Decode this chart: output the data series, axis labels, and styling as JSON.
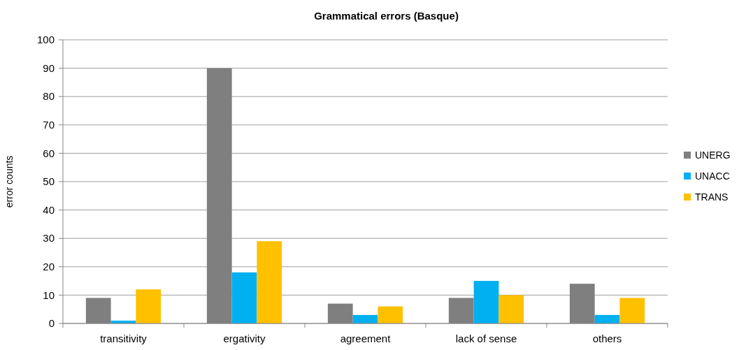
{
  "chart_data": {
    "type": "bar",
    "title": "Grammatical errors (Basque)",
    "ylabel": "error counts",
    "categories": [
      "transitivity",
      "ergativity",
      "agreement",
      "lack of sense",
      "others"
    ],
    "series": [
      {
        "name": "UNERG",
        "color": "#7f7f7f",
        "values": [
          9,
          90,
          7,
          9,
          14
        ]
      },
      {
        "name": "UNACC",
        "color": "#00b0f0",
        "values": [
          1,
          18,
          3,
          15,
          3
        ]
      },
      {
        "name": "TRANS",
        "color": "#ffc000",
        "values": [
          12,
          29,
          6,
          10,
          9
        ]
      }
    ],
    "ylim": [
      0,
      100
    ],
    "yticks": [
      0,
      10,
      20,
      30,
      40,
      50,
      60,
      70,
      80,
      90,
      100
    ],
    "grid": "y",
    "legend": "right"
  }
}
